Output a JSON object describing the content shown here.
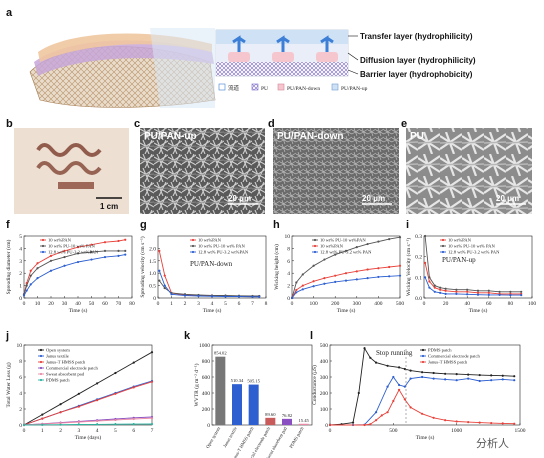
{
  "panel_a": {
    "label": "a",
    "layers": [
      "Transfer layer (hydrophilicity)",
      "Diffusion layer (hydrophilicity)",
      "Barrier layer (hydrophobicity)"
    ],
    "legend": [
      "流道",
      "PU",
      "PU/PAN-down",
      "PU/PAN-up"
    ]
  },
  "panel_b": {
    "label": "b",
    "scale": "1 cm"
  },
  "panel_c": {
    "label": "c",
    "title": "PU/PAN-up",
    "scale": "20 μm"
  },
  "panel_d": {
    "label": "d",
    "title": "PU/PAN-down",
    "scale": "20 μm"
  },
  "panel_e": {
    "label": "e",
    "title": "PU",
    "scale": "20 μm"
  },
  "colors": {
    "red": "#e8413a",
    "gray": "#555555",
    "blue": "#2d5fd0",
    "purple": "#8a4fc0",
    "green": "#2bb3a0",
    "pink": "#e88aa6"
  },
  "watermark": "分析人",
  "chart_data": [
    {
      "panel": "f",
      "type": "line",
      "xlabel": "Time (s)",
      "ylabel": "Spreading diameter (cm)",
      "xlim": [
        0,
        80
      ],
      "ylim": [
        0,
        5
      ],
      "xticks": [
        "0",
        "10",
        "20",
        "30",
        "40",
        "50",
        "60",
        "70",
        "80"
      ],
      "yticks": [
        "0",
        "1",
        "2",
        "3",
        "4",
        "5"
      ],
      "series": [
        {
          "name": "10 wt%PAN",
          "color": "#e8413a",
          "x": [
            0,
            2,
            5,
            10,
            20,
            30,
            40,
            50,
            60,
            70,
            75
          ],
          "y": [
            0.3,
            1.2,
            2.2,
            2.8,
            3.4,
            3.8,
            4.1,
            4.3,
            4.5,
            4.6,
            4.7
          ]
        },
        {
          "name": "10 wt% PU-10 wt% PAN",
          "color": "#555555",
          "x": [
            0,
            2,
            5,
            10,
            20,
            30,
            40,
            50,
            60,
            70,
            75
          ],
          "y": [
            0.3,
            1.0,
            1.8,
            2.4,
            3.0,
            3.3,
            3.6,
            3.7,
            3.8,
            3.8,
            3.8
          ]
        },
        {
          "name": "12.8 wt% PU-3.2 wt%PAN",
          "color": "#2d5fd0",
          "x": [
            0,
            2,
            5,
            10,
            20,
            30,
            40,
            50,
            60,
            70,
            75
          ],
          "y": [
            0.2,
            0.6,
            1.1,
            1.6,
            2.2,
            2.6,
            2.9,
            3.1,
            3.3,
            3.4,
            3.5
          ]
        }
      ]
    },
    {
      "panel": "g",
      "type": "line",
      "xlabel": "Time (s)",
      "ylabel": "Spreading velocity (cm s⁻¹)",
      "annotation": "PU/PAN-down",
      "xlim": [
        0,
        8
      ],
      "ylim": [
        0,
        2.5
      ],
      "xticks": [
        "0",
        "1",
        "2",
        "3",
        "4",
        "5",
        "6",
        "7",
        "8"
      ],
      "yticks": [
        "0",
        "0.5",
        "1.0",
        "1.5",
        "2.0"
      ],
      "series": [
        {
          "name": "10 wt%PAN",
          "color": "#e8413a",
          "x": [
            0.1,
            0.5,
            1,
            2,
            3,
            4,
            5,
            6,
            7,
            7.5
          ],
          "y": [
            1.9,
            0.9,
            0.2,
            0.12,
            0.1,
            0.1,
            0.08,
            0.08,
            0.07,
            0.07
          ]
        },
        {
          "name": "10 wt% PU-10 wt% PAN",
          "color": "#555555",
          "x": [
            0.1,
            0.5,
            1,
            2,
            3,
            4,
            5,
            6,
            7,
            7.5
          ],
          "y": [
            0.7,
            0.4,
            0.2,
            0.15,
            0.12,
            0.1,
            0.1,
            0.09,
            0.08,
            0.08
          ]
        },
        {
          "name": "12.8 wt% PU-3.2 wt%PAN",
          "color": "#2d5fd0",
          "x": [
            0.1,
            0.5,
            1,
            2,
            3,
            4,
            5,
            6,
            7,
            7.5
          ],
          "y": [
            1.1,
            0.5,
            0.15,
            0.1,
            0.08,
            0.07,
            0.06,
            0.06,
            0.05,
            0.05
          ]
        }
      ]
    },
    {
      "panel": "h",
      "type": "line",
      "xlabel": "Time (s)",
      "ylabel": "Wicking height (cm)",
      "xlim": [
        0,
        500
      ],
      "ylim": [
        0,
        10
      ],
      "xticks": [
        "0",
        "100",
        "200",
        "300",
        "400",
        "500"
      ],
      "yticks": [
        "0",
        "2",
        "4",
        "6",
        "8",
        "10"
      ],
      "series": [
        {
          "name": "10 wt% PU-10 wt%PAN",
          "color": "#555555",
          "x": [
            0,
            20,
            50,
            100,
            150,
            200,
            250,
            300,
            350,
            400,
            450,
            500
          ],
          "y": [
            0,
            2.5,
            3.8,
            5.2,
            6.2,
            7.0,
            7.6,
            8.2,
            8.7,
            9.1,
            9.5,
            9.8
          ]
        },
        {
          "name": "10 wt%PAN",
          "color": "#e8413a",
          "x": [
            0,
            20,
            50,
            100,
            150,
            200,
            250,
            300,
            350,
            400,
            450,
            500
          ],
          "y": [
            0,
            1.3,
            2.0,
            2.7,
            3.2,
            3.6,
            4.0,
            4.3,
            4.6,
            4.8,
            5.0,
            5.2
          ]
        },
        {
          "name": "12.8 wt% PU-3.2 wt% PAN",
          "color": "#2d5fd0",
          "x": [
            0,
            20,
            50,
            100,
            150,
            200,
            250,
            300,
            350,
            400,
            450,
            500
          ],
          "y": [
            0,
            0.9,
            1.4,
            1.9,
            2.3,
            2.6,
            2.8,
            3.0,
            3.2,
            3.4,
            3.5,
            3.6
          ]
        }
      ]
    },
    {
      "panel": "i",
      "type": "line",
      "xlabel": "Time (s)",
      "ylabel": "Wicking Velocity (cm s⁻¹)",
      "annotation": "PU/PAN-up",
      "xlim": [
        0,
        100
      ],
      "ylim": [
        0,
        0.3
      ],
      "xticks": [
        "0",
        "20",
        "40",
        "60",
        "80",
        "100"
      ],
      "yticks": [
        "0.0",
        "0.1",
        "0.2",
        "0.3"
      ],
      "series": [
        {
          "name": "10 wt%PAN",
          "color": "#e8413a",
          "x": [
            1,
            5,
            10,
            15,
            20,
            30,
            40,
            50,
            60,
            70,
            80,
            90
          ],
          "y": [
            0.17,
            0.08,
            0.05,
            0.04,
            0.035,
            0.03,
            0.03,
            0.025,
            0.025,
            0.02,
            0.02,
            0.02
          ]
        },
        {
          "name": "10 wt% PU-10 wt% PAN",
          "color": "#555555",
          "x": [
            1,
            5,
            10,
            15,
            20,
            30,
            40,
            50,
            60,
            70,
            80,
            90
          ],
          "y": [
            0.3,
            0.1,
            0.06,
            0.05,
            0.045,
            0.04,
            0.04,
            0.035,
            0.035,
            0.03,
            0.03,
            0.03
          ]
        },
        {
          "name": "12.8 wt% PU-3.2 wt% PAN",
          "color": "#2d5fd0",
          "x": [
            1,
            5,
            10,
            15,
            20,
            30,
            40,
            50,
            60,
            70,
            80,
            90
          ],
          "y": [
            0.1,
            0.05,
            0.03,
            0.025,
            0.02,
            0.02,
            0.018,
            0.016,
            0.015,
            0.015,
            0.014,
            0.014
          ]
        }
      ]
    },
    {
      "panel": "j",
      "type": "line",
      "xlabel": "Time (days)",
      "ylabel": "Total Water Loss (g)",
      "xlim": [
        0,
        7
      ],
      "ylim": [
        0,
        10
      ],
      "xticks": [
        "0",
        "1",
        "2",
        "3",
        "4",
        "5",
        "6",
        "7"
      ],
      "yticks": [
        "0",
        "2",
        "4",
        "6",
        "8",
        "10"
      ],
      "series": [
        {
          "name": "Open system",
          "color": "#222222",
          "x": [
            0,
            1,
            2,
            3,
            4,
            5,
            6,
            7
          ],
          "y": [
            0,
            1.3,
            2.6,
            3.9,
            5.2,
            6.5,
            7.8,
            9.1
          ]
        },
        {
          "name": "Janus textile",
          "color": "#2d5fd0",
          "x": [
            0,
            1,
            2,
            3,
            4,
            5,
            6,
            7
          ],
          "y": [
            0,
            0.8,
            1.6,
            2.4,
            3.2,
            4.0,
            4.8,
            5.5
          ]
        },
        {
          "name": "Janus-T HMSS patch",
          "color": "#e8413a",
          "x": [
            0,
            1,
            2,
            3,
            4,
            5,
            6,
            7
          ],
          "y": [
            0,
            0.8,
            1.6,
            2.3,
            3.1,
            3.9,
            4.7,
            5.4
          ]
        },
        {
          "name": "Commercial electrode patch",
          "color": "#8a4fc0",
          "x": [
            0,
            1,
            2,
            3,
            4,
            5,
            6,
            7
          ],
          "y": [
            0,
            0.15,
            0.3,
            0.45,
            0.6,
            0.75,
            0.9,
            1.0
          ]
        },
        {
          "name": "Sweat absorbent pad",
          "color": "#e88aa6",
          "x": [
            0,
            1,
            2,
            3,
            4,
            5,
            6,
            7
          ],
          "y": [
            0,
            0.12,
            0.25,
            0.38,
            0.5,
            0.62,
            0.75,
            0.85
          ]
        },
        {
          "name": "PDMS patch",
          "color": "#2bb3a0",
          "x": [
            0,
            1,
            2,
            3,
            4,
            5,
            6,
            7
          ],
          "y": [
            0,
            0.02,
            0.04,
            0.06,
            0.08,
            0.1,
            0.11,
            0.12
          ]
        }
      ]
    },
    {
      "panel": "k",
      "type": "bar",
      "ylabel": "WVTR (g m⁻² d⁻¹)",
      "ylim": [
        0,
        1000
      ],
      "yticks": [
        "0",
        "200",
        "400",
        "600",
        "800",
        "1000"
      ],
      "categories": [
        "Open system",
        "Janus textile",
        "Janus-T HMSS patch",
        "Commercial electrode patch",
        "Sweat absorbent pad",
        "PDMS patch"
      ],
      "values": [
        854.02,
        510.34,
        505.15,
        89.6,
        76.82,
        15.45
      ],
      "value_labels": [
        "854.02",
        "510.34",
        "505.15",
        "89.60",
        "76.82",
        "15.45"
      ],
      "colors": [
        "#777777",
        "#2d5fd0",
        "#2d5fd0",
        "#c85a5a",
        "#8a4fc0",
        "#e88aa6"
      ]
    },
    {
      "panel": "l",
      "type": "line",
      "xlabel": "Time (s)",
      "ylabel": "Conductance (μS)",
      "annotation": "Stop running",
      "xlim": [
        0,
        1650
      ],
      "ylim": [
        0,
        500
      ],
      "xticks": [
        "0",
        "500",
        "1000",
        "1500"
      ],
      "yticks": [
        "0",
        "100",
        "200",
        "300",
        "400",
        "500"
      ],
      "series": [
        {
          "name": "PDMS patch",
          "color": "#222222",
          "x": [
            0,
            100,
            200,
            250,
            300,
            350,
            400,
            500,
            600,
            650,
            700,
            800,
            900,
            1000,
            1100,
            1200,
            1300,
            1400,
            1500,
            1600
          ],
          "y": [
            0,
            5,
            15,
            200,
            480,
            420,
            390,
            370,
            360,
            350,
            340,
            330,
            325,
            320,
            318,
            315,
            312,
            310,
            308,
            305
          ]
        },
        {
          "name": "Commercial electrode patch",
          "color": "#2d5fd0",
          "x": [
            0,
            200,
            300,
            400,
            500,
            550,
            600,
            650,
            700,
            800,
            900,
            1000,
            1100,
            1200,
            1300,
            1400,
            1500,
            1600
          ],
          "y": [
            0,
            0,
            2,
            80,
            240,
            300,
            250,
            240,
            290,
            300,
            290,
            285,
            280,
            290,
            275,
            280,
            285,
            280
          ]
        },
        {
          "name": "Janus-T HMSS patch",
          "color": "#e8413a",
          "x": [
            0,
            300,
            350,
            400,
            450,
            500,
            550,
            600,
            650,
            700,
            800,
            900,
            1000,
            1100,
            1200,
            1300,
            1400,
            1500,
            1600
          ],
          "y": [
            0,
            0,
            5,
            30,
            60,
            80,
            150,
            220,
            160,
            110,
            70,
            45,
            30,
            22,
            18,
            15,
            12,
            10,
            8
          ]
        }
      ]
    }
  ]
}
